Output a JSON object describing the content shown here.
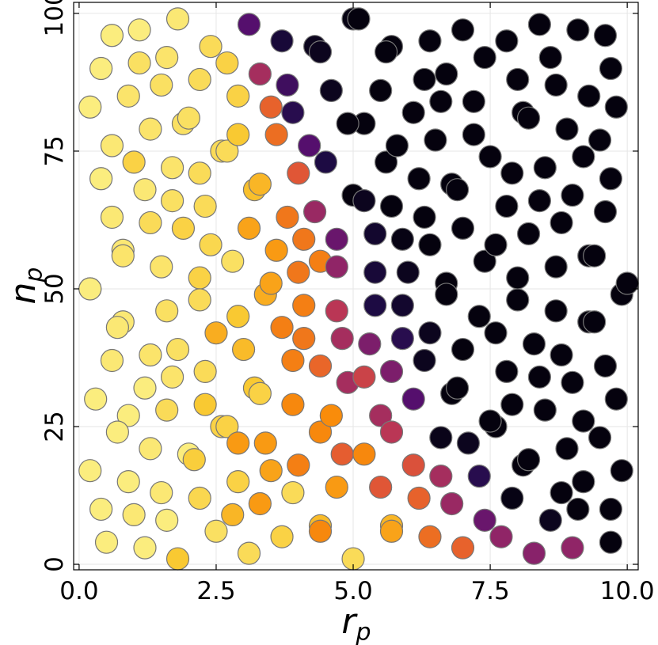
{
  "chart_data": {
    "type": "scatter",
    "title": "",
    "xlabel": "r",
    "xlabel_sub": "p",
    "ylabel": "n",
    "ylabel_sub": "p",
    "xlim": [
      -0.1,
      10.2
    ],
    "ylim": [
      -1,
      102
    ],
    "xticks": [
      0,
      2.5,
      5,
      7.5,
      10
    ],
    "xtick_labels": [
      "0.0",
      "2.5",
      "5.0",
      "7.5",
      "10.0"
    ],
    "yticks": [
      0,
      25,
      50,
      75,
      100
    ],
    "ytick_labels": [
      "0",
      "25",
      "50",
      "75",
      "100"
    ],
    "grid": true,
    "colormap": "inferno",
    "marker_edge_color": "#777777",
    "points": [
      [
        0.6,
        96,
        0.96
      ],
      [
        1.1,
        97,
        0.96
      ],
      [
        1.8,
        99,
        0.95
      ],
      [
        0.4,
        90,
        0.96
      ],
      [
        1.1,
        91,
        0.93
      ],
      [
        1.6,
        92,
        0.94
      ],
      [
        2.4,
        94,
        0.92
      ],
      [
        2.7,
        91,
        0.9
      ],
      [
        0.2,
        83,
        0.96
      ],
      [
        0.9,
        85,
        0.94
      ],
      [
        1.5,
        87,
        0.93
      ],
      [
        2.2,
        88,
        0.92
      ],
      [
        2.9,
        85,
        0.9
      ],
      [
        1.3,
        79,
        0.94
      ],
      [
        1.9,
        80,
        0.93
      ],
      [
        2.0,
        81,
        0.93
      ],
      [
        0.6,
        76,
        0.95
      ],
      [
        1.0,
        73,
        0.9
      ],
      [
        1.7,
        72,
        0.94
      ],
      [
        2.2,
        71,
        0.92
      ],
      [
        2.6,
        75,
        0.92
      ],
      [
        2.7,
        75,
        0.92
      ],
      [
        2.9,
        78,
        0.88
      ],
      [
        0.4,
        70,
        0.96
      ],
      [
        1.2,
        68,
        0.95
      ],
      [
        1.7,
        66,
        0.93
      ],
      [
        2.3,
        65,
        0.92
      ],
      [
        0.6,
        63,
        0.95
      ],
      [
        1.3,
        62,
        0.92
      ],
      [
        1.9,
        61,
        0.9
      ],
      [
        2.4,
        58,
        0.91
      ],
      [
        3.2,
        68,
        0.86
      ],
      [
        3.3,
        69,
        0.84
      ],
      [
        3.1,
        61,
        0.8
      ],
      [
        0.8,
        57,
        0.95
      ],
      [
        0.8,
        56,
        0.94
      ],
      [
        1.5,
        54,
        0.94
      ],
      [
        2.2,
        52,
        0.9
      ],
      [
        2.8,
        55,
        0.93
      ],
      [
        0.2,
        50,
        0.96
      ],
      [
        0.2,
        50,
        0.96
      ],
      [
        2.2,
        48,
        0.92
      ],
      [
        3.4,
        49,
        0.82
      ],
      [
        3.5,
        51,
        0.8
      ],
      [
        0.8,
        44,
        0.95
      ],
      [
        1.6,
        46,
        0.93
      ],
      [
        2.5,
        42,
        0.82
      ],
      [
        2.9,
        45,
        0.88
      ],
      [
        0.7,
        43,
        0.95
      ],
      [
        1.3,
        38,
        0.94
      ],
      [
        1.8,
        39,
        0.93
      ],
      [
        2.3,
        35,
        0.92
      ],
      [
        3.0,
        39,
        0.85
      ],
      [
        0.6,
        37,
        0.95
      ],
      [
        1.7,
        34,
        0.94
      ],
      [
        3.2,
        32,
        0.88
      ],
      [
        3.3,
        31,
        0.9
      ],
      [
        0.3,
        30,
        0.96
      ],
      [
        1.2,
        32,
        0.96
      ],
      [
        2.3,
        29,
        0.88
      ],
      [
        0.9,
        27,
        0.96
      ],
      [
        1.6,
        28,
        0.92
      ],
      [
        2.6,
        25,
        0.9
      ],
      [
        2.7,
        25,
        0.9
      ],
      [
        0.7,
        24,
        0.96
      ],
      [
        1.3,
        21,
        0.95
      ],
      [
        2.0,
        20,
        0.96
      ],
      [
        2.1,
        19,
        0.89
      ],
      [
        2.9,
        22,
        0.78
      ],
      [
        0.2,
        17,
        0.96
      ],
      [
        0.9,
        15,
        0.96
      ],
      [
        1.5,
        13,
        0.95
      ],
      [
        2.2,
        12,
        0.91
      ],
      [
        2.9,
        15,
        0.9
      ],
      [
        0.4,
        10,
        0.96
      ],
      [
        1.0,
        9,
        0.95
      ],
      [
        1.6,
        8,
        0.96
      ],
      [
        2.5,
        6,
        0.93
      ],
      [
        2.8,
        9,
        0.84
      ],
      [
        0.5,
        4,
        0.96
      ],
      [
        1.2,
        3,
        0.96
      ],
      [
        1.8,
        1,
        0.88
      ],
      [
        3.1,
        2,
        0.92
      ],
      [
        3.4,
        22,
        0.78
      ],
      [
        3.5,
        17,
        0.8
      ],
      [
        3.3,
        11,
        0.78
      ],
      [
        3.7,
        5,
        0.9
      ],
      [
        3.9,
        13,
        0.92
      ],
      [
        3.3,
        89,
        0.45
      ],
      [
        3.5,
        83,
        0.65
      ],
      [
        3.6,
        78,
        0.68
      ],
      [
        3.8,
        87,
        0.2
      ],
      [
        3.9,
        82,
        0.15
      ],
      [
        4.2,
        76,
        0.25
      ],
      [
        3.7,
        95,
        0.1
      ],
      [
        3.1,
        98,
        0.25
      ],
      [
        4.3,
        94,
        0.05
      ],
      [
        4.4,
        93,
        0.05
      ],
      [
        4.5,
        73,
        0.12
      ],
      [
        4.6,
        86,
        0.05
      ],
      [
        4.0,
        71,
        0.62
      ],
      [
        3.8,
        63,
        0.7
      ],
      [
        4.3,
        64,
        0.42
      ],
      [
        4.1,
        59,
        0.7
      ],
      [
        4.7,
        59,
        0.3
      ],
      [
        3.6,
        57,
        0.78
      ],
      [
        4.0,
        53,
        0.7
      ],
      [
        4.4,
        55,
        0.72
      ],
      [
        4.7,
        54,
        0.4
      ],
      [
        4.1,
        47,
        0.72
      ],
      [
        4.7,
        46,
        0.5
      ],
      [
        3.7,
        43,
        0.72
      ],
      [
        4.1,
        41,
        0.7
      ],
      [
        4.8,
        41,
        0.45
      ],
      [
        3.9,
        37,
        0.72
      ],
      [
        4.4,
        36,
        0.66
      ],
      [
        4.9,
        33,
        0.45
      ],
      [
        3.9,
        29,
        0.74
      ],
      [
        4.4,
        24,
        0.74
      ],
      [
        4.6,
        27,
        0.75
      ],
      [
        4.8,
        20,
        0.64
      ],
      [
        5.2,
        20,
        0.74
      ],
      [
        4.0,
        18,
        0.72
      ],
      [
        4.7,
        14,
        0.78
      ],
      [
        4.4,
        7,
        0.85
      ],
      [
        4.4,
        6,
        0.74
      ],
      [
        5.0,
        1,
        0.92
      ],
      [
        5.2,
        34,
        0.55
      ],
      [
        5.0,
        99,
        0.03
      ],
      [
        5.1,
        99,
        0.02
      ],
      [
        5.5,
        86,
        0.02
      ],
      [
        5.2,
        80,
        0.02
      ],
      [
        4.9,
        80,
        0.02
      ],
      [
        5.0,
        67,
        0.02
      ],
      [
        5.2,
        66,
        0.05
      ],
      [
        5.4,
        60,
        0.08
      ],
      [
        5.4,
        53,
        0.1
      ],
      [
        5.4,
        47,
        0.12
      ],
      [
        5.3,
        40,
        0.35
      ],
      [
        5.5,
        27,
        0.45
      ],
      [
        5.7,
        24,
        0.5
      ],
      [
        5.5,
        14,
        0.62
      ],
      [
        5.7,
        7,
        0.84
      ],
      [
        5.7,
        6,
        0.8
      ],
      [
        5.6,
        73,
        0.02
      ],
      [
        5.7,
        65,
        0.02
      ],
      [
        5.8,
        76,
        0.02
      ],
      [
        5.9,
        59,
        0.03
      ],
      [
        5.7,
        94,
        0.02
      ],
      [
        5.6,
        93,
        0.02
      ],
      [
        6.1,
        82,
        0.02
      ],
      [
        6.0,
        53,
        0.05
      ],
      [
        5.9,
        47,
        0.08
      ],
      [
        5.9,
        41,
        0.15
      ],
      [
        5.7,
        35,
        0.35
      ],
      [
        6.1,
        30,
        0.25
      ],
      [
        6.1,
        18,
        0.6
      ],
      [
        6.2,
        12,
        0.65
      ],
      [
        6.3,
        88,
        0.02
      ],
      [
        6.4,
        95,
        0.02
      ],
      [
        6.2,
        70,
        0.02
      ],
      [
        6.3,
        63,
        0.02
      ],
      [
        6.4,
        58,
        0.02
      ],
      [
        6.3,
        37,
        0.05
      ],
      [
        6.4,
        42,
        0.05
      ],
      [
        6.4,
        5,
        0.68
      ],
      [
        6.6,
        23,
        0.04
      ],
      [
        6.6,
        16,
        0.45
      ],
      [
        6.5,
        77,
        0.02
      ],
      [
        6.6,
        84,
        0.02
      ],
      [
        6.7,
        89,
        0.02
      ],
      [
        6.7,
        51,
        0.02
      ],
      [
        6.7,
        49,
        0.02
      ],
      [
        6.8,
        69,
        0.02
      ],
      [
        6.9,
        68,
        0.02
      ],
      [
        6.8,
        31,
        0.02
      ],
      [
        6.9,
        32,
        0.02
      ],
      [
        6.8,
        11,
        0.42
      ],
      [
        7.0,
        97,
        0.02
      ],
      [
        7.0,
        61,
        0.02
      ],
      [
        7.0,
        39,
        0.02
      ],
      [
        7.0,
        3,
        0.65
      ],
      [
        7.1,
        22,
        0.05
      ],
      [
        7.2,
        78,
        0.02
      ],
      [
        7.2,
        84,
        0.02
      ],
      [
        7.3,
        16,
        0.15
      ],
      [
        7.3,
        45,
        0.02
      ],
      [
        7.4,
        55,
        0.02
      ],
      [
        7.4,
        92,
        0.02
      ],
      [
        7.5,
        74,
        0.02
      ],
      [
        7.4,
        8,
        0.3
      ],
      [
        7.6,
        42,
        0.02
      ],
      [
        7.6,
        25,
        0.02
      ],
      [
        7.5,
        26,
        0.02
      ],
      [
        7.6,
        58,
        0.02
      ],
      [
        7.7,
        5,
        0.4
      ],
      [
        7.8,
        95,
        0.02
      ],
      [
        7.8,
        65,
        0.02
      ],
      [
        7.8,
        35,
        0.02
      ],
      [
        7.9,
        71,
        0.02
      ],
      [
        7.9,
        29,
        0.02
      ],
      [
        8.0,
        88,
        0.02
      ],
      [
        8.0,
        48,
        0.02
      ],
      [
        8.0,
        52,
        0.02
      ],
      [
        7.9,
        12,
        0.03
      ],
      [
        8.1,
        18,
        0.02
      ],
      [
        8.2,
        19,
        0.02
      ],
      [
        8.1,
        82,
        0.02
      ],
      [
        8.2,
        81,
        0.02
      ],
      [
        8.2,
        60,
        0.02
      ],
      [
        8.3,
        40,
        0.02
      ],
      [
        8.4,
        98,
        0.02
      ],
      [
        8.3,
        2,
        0.38
      ],
      [
        8.4,
        34,
        0.02
      ],
      [
        8.5,
        72,
        0.02
      ],
      [
        8.4,
        66,
        0.02
      ],
      [
        8.6,
        92,
        0.02
      ],
      [
        8.5,
        28,
        0.02
      ],
      [
        8.6,
        8,
        0.05
      ],
      [
        8.7,
        46,
        0.02
      ],
      [
        8.7,
        54,
        0.02
      ],
      [
        8.7,
        87,
        0.02
      ],
      [
        8.8,
        13,
        0.02
      ],
      [
        8.8,
        62,
        0.02
      ],
      [
        8.8,
        38,
        0.02
      ],
      [
        8.9,
        79,
        0.02
      ],
      [
        8.9,
        21,
        0.02
      ],
      [
        9.0,
        33,
        0.02
      ],
      [
        9.0,
        3,
        0.4
      ],
      [
        9.0,
        67,
        0.02
      ],
      [
        9.1,
        97,
        0.02
      ],
      [
        9.1,
        10,
        0.02
      ],
      [
        9.2,
        26,
        0.02
      ],
      [
        9.2,
        74,
        0.02
      ],
      [
        9.2,
        15,
        0.02
      ],
      [
        9.3,
        85,
        0.02
      ],
      [
        9.3,
        56,
        0.02
      ],
      [
        9.4,
        56,
        0.02
      ],
      [
        9.3,
        44,
        0.02
      ],
      [
        9.4,
        44,
        0.02
      ],
      [
        9.5,
        23,
        0.02
      ],
      [
        9.5,
        77,
        0.02
      ],
      [
        9.6,
        64,
        0.02
      ],
      [
        9.6,
        36,
        0.02
      ],
      [
        9.7,
        10,
        0.02
      ],
      [
        9.7,
        4,
        0.02
      ],
      [
        9.6,
        96,
        0.02
      ],
      [
        9.7,
        90,
        0.02
      ],
      [
        9.7,
        70,
        0.02
      ],
      [
        9.8,
        83,
        0.02
      ],
      [
        9.8,
        30,
        0.02
      ],
      [
        9.9,
        17,
        0.02
      ],
      [
        9.9,
        49,
        0.02
      ],
      [
        10.0,
        51,
        0.02
      ]
    ]
  }
}
